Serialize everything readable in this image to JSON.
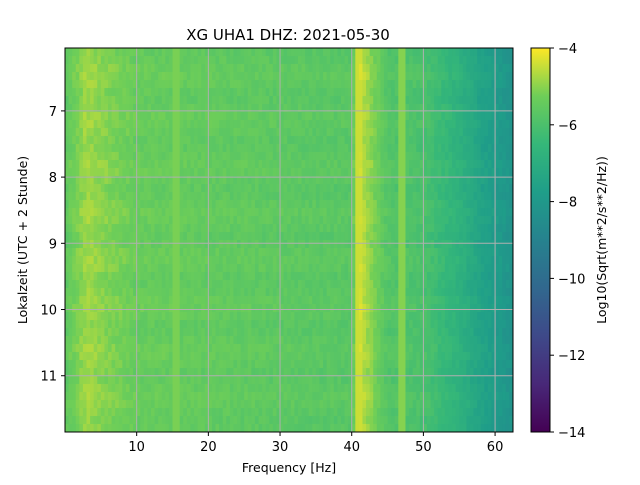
{
  "chart_data": {
    "type": "heatmap",
    "title": "XG UHA1  DHZ: 2021-05-30",
    "xlabel": "Frequency [Hz]",
    "ylabel": "Lokalzeit (UTC + 2 Stunde)",
    "xlim": [
      0,
      62.5
    ],
    "ylim": [
      6.05,
      11.85
    ],
    "x_axis_ticks": [
      10,
      20,
      30,
      40,
      50,
      60
    ],
    "y_axis_ticks": [
      7,
      8,
      9,
      10,
      11
    ],
    "y_inverted": true,
    "grid": true,
    "colorbar": {
      "label": "Log10(Sqrt(m**2/s**2/Hz))",
      "range": [
        -14,
        -4
      ],
      "ticks": [
        -4,
        -6,
        -8,
        -10,
        -12,
        -14
      ],
      "colormap": "viridis"
    },
    "spectral_profile": {
      "frequency_hz": [
        0,
        3,
        5,
        10,
        20,
        30,
        40,
        41,
        45,
        50,
        55,
        58,
        62.5
      ],
      "level": [
        -5.6,
        -4.8,
        -5.0,
        -5.4,
        -5.5,
        -5.6,
        -5.7,
        -4.4,
        -5.8,
        -6.0,
        -6.8,
        -7.5,
        -8.2
      ]
    },
    "features": [
      {
        "type": "vertical_line",
        "frequency_hz": 41,
        "level": -4.3
      },
      {
        "type": "vertical_line",
        "frequency_hz": 47,
        "level": -4.9
      },
      {
        "type": "vertical_line",
        "frequency_hz": 15.5,
        "level": -5.0
      }
    ]
  }
}
